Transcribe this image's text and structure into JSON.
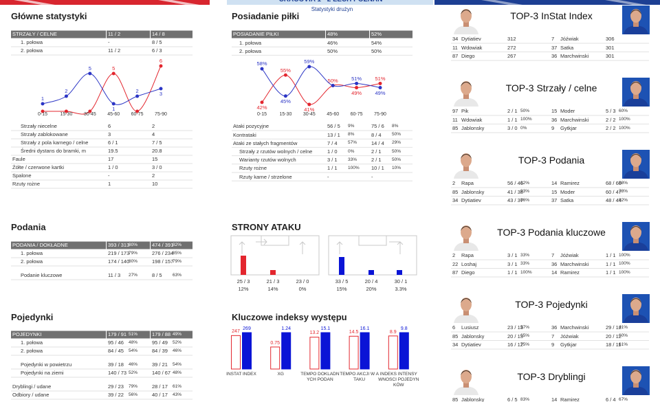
{
  "header": {
    "title": "CRACOVIA 1 - 2 LECH POZNAN",
    "subtitle": "Statystyki drużyn"
  },
  "main_stats": {
    "title": "Główne statystyki",
    "table": {
      "header": [
        "STRZAŁY / CELNE",
        "11 / 2",
        "14 / 8"
      ],
      "groups": [
        [
          {
            "cells": [
              "1. połowa",
              "-",
              "8 / 5"
            ],
            "level": 1
          },
          {
            "cells": [
              "2. połowa",
              "11 / 2",
              "6 / 3"
            ],
            "level": 1
          }
        ]
      ]
    },
    "details": {
      "groups": [
        [
          {
            "cells": [
              "Strzały niecelne",
              "6",
              "2"
            ],
            "level": 1
          },
          {
            "cells": [
              "Strzały zablokowane",
              "3",
              "4"
            ],
            "level": 1
          },
          {
            "cells": [
              "Strzały z pola karnego / celne",
              "6 / 1",
              "7 / 5"
            ],
            "level": 1
          },
          {
            "cells": [
              "Średni dystans do bramki, m",
              "19.5",
              "20.8"
            ],
            "level": 1
          },
          {
            "cells": [
              "Faule",
              "17",
              "15"
            ],
            "level": 0
          },
          {
            "cells": [
              "Żółte / czerwone kartki",
              "1 / 0",
              "3 / 0"
            ],
            "level": 0
          },
          {
            "cells": [
              "Spalone",
              "-",
              "2"
            ],
            "level": 0
          },
          {
            "cells": [
              "Rzuty rożne",
              "1",
              "10"
            ],
            "level": 0
          }
        ]
      ]
    }
  },
  "passes": {
    "title": "Podania",
    "table": {
      "header": [
        "PODANIA / DOKŁADNE",
        {
          "value": "393 / 313",
          "pct": "80%"
        },
        {
          "value": "474 / 391",
          "pct": "82%"
        }
      ],
      "groups": [
        [
          {
            "cells": [
              "1. połowa",
              {
                "value": "219 / 173",
                "pct": "79%"
              },
              {
                "value": "276 / 234",
                "pct": "85%"
              }
            ],
            "level": 1
          },
          {
            "cells": [
              "2. połowa",
              {
                "value": "174 / 140",
                "pct": "80%"
              },
              {
                "value": "198 / 157",
                "pct": "79%"
              }
            ],
            "level": 1
          }
        ],
        [
          {
            "cells": [
              "Podanie kluczowe",
              {
                "value": "11 / 3",
                "pct": "27%"
              },
              {
                "value": "8 / 5",
                "pct": "63%"
              }
            ],
            "level": 1
          }
        ]
      ]
    }
  },
  "duels": {
    "title": "Pojedynki",
    "table": {
      "header": [
        "POJEDYNKI",
        {
          "value": "179 / 91",
          "pct": "51%"
        },
        {
          "value": "179 / 88",
          "pct": "49%"
        }
      ],
      "groups": [
        [
          {
            "cells": [
              "1. połowa",
              {
                "value": "95 / 46",
                "pct": "48%"
              },
              {
                "value": "95 / 49",
                "pct": "52%"
              }
            ],
            "level": 1
          },
          {
            "cells": [
              "2. połowa",
              {
                "value": "84 / 45",
                "pct": "54%"
              },
              {
                "value": "84 / 39",
                "pct": "46%"
              }
            ],
            "level": 1
          }
        ],
        [
          {
            "cells": [
              "Pojedynki w powietrzu",
              {
                "value": "39 / 18",
                "pct": "46%"
              },
              {
                "value": "39 / 21",
                "pct": "54%"
              }
            ],
            "level": 1
          },
          {
            "cells": [
              "Pojedynki na ziemi",
              {
                "value": "140 / 73",
                "pct": "52%"
              },
              {
                "value": "140 / 67",
                "pct": "48%"
              }
            ],
            "level": 1
          }
        ],
        [
          {
            "cells": [
              "Dryblingi / udane",
              {
                "value": "29 / 23",
                "pct": "79%"
              },
              {
                "value": "28 / 17",
                "pct": "61%"
              }
            ],
            "level": 0
          },
          {
            "cells": [
              "Odbiory / udane",
              {
                "value": "39 / 22",
                "pct": "56%"
              },
              {
                "value": "40 / 17",
                "pct": "43%"
              }
            ],
            "level": 0
          }
        ]
      ]
    }
  },
  "possession": {
    "title": "Posiadanie piłki",
    "table": {
      "header": [
        "POSIADANIE PIŁKI",
        "48%",
        "52%"
      ],
      "groups": [
        [
          {
            "cells": [
              "1. połowa",
              "46%",
              "54%"
            ],
            "level": 1
          },
          {
            "cells": [
              "2. połowa",
              "50%",
              "50%"
            ],
            "level": 1
          }
        ]
      ]
    },
    "details": {
      "groups": [
        [
          {
            "cells": [
              "Ataki pozycyjne",
              {
                "value": "56 / 5",
                "pct": "9%"
              },
              {
                "value": "75 / 6",
                "pct": "8%"
              }
            ],
            "level": 0
          },
          {
            "cells": [
              "Kontrataki",
              {
                "value": "13 / 1",
                "pct": "8%"
              },
              {
                "value": "8 / 4",
                "pct": "50%"
              }
            ],
            "level": 0
          },
          {
            "cells": [
              "Ataki ze stałych fragmentów",
              {
                "value": "7 / 4",
                "pct": "57%"
              },
              {
                "value": "14 / 4",
                "pct": "29%"
              }
            ],
            "level": 0
          },
          {
            "cells": [
              "Strzały z rzutów wolnych / celne",
              {
                "value": "1 / 0",
                "pct": "0%"
              },
              {
                "value": "2 / 1",
                "pct": "50%"
              }
            ],
            "level": 1
          },
          {
            "cells": [
              "Warianty rzutów wolnych",
              {
                "value": "3 / 1",
                "pct": "33%"
              },
              {
                "value": "2 / 1",
                "pct": "50%"
              }
            ],
            "level": 1
          },
          {
            "cells": [
              "Rzuty rożne",
              {
                "value": "1 / 1",
                "pct": "100%"
              },
              {
                "value": "10 / 1",
                "pct": "10%"
              }
            ],
            "level": 1
          },
          {
            "cells": [
              "Rzuty karne / strzelone",
              "-",
              "-"
            ],
            "level": 1
          }
        ]
      ]
    }
  },
  "attack_sides": {
    "title": "STRONY ATAKU",
    "teams": [
      [
        {
          "value": "25 / 3",
          "pct": "12%"
        },
        {
          "value": "21 / 3",
          "pct": "14%"
        },
        {
          "value": "23 / 0",
          "pct": "0%"
        }
      ],
      [
        {
          "value": "33 / 5",
          "pct": "15%"
        },
        {
          "value": "20 / 4",
          "pct": "20%"
        },
        {
          "value": "30 / 1",
          "pct": "3.3%"
        }
      ]
    ]
  },
  "indices": {
    "title": "Kluczowe indeksy występu"
  },
  "chart_data": [
    {
      "type": "line",
      "categories": [
        "0-15",
        "15-30",
        "30-45",
        "45-60",
        "60-75",
        "75-90"
      ],
      "series": [
        {
          "color": "#e3262e",
          "values": [
            0,
            0,
            0,
            5,
            0,
            6
          ],
          "value_labels": [
            null,
            null,
            null,
            "5",
            null,
            "6"
          ]
        },
        {
          "color": "#2b35c5",
          "values": [
            1,
            2,
            5,
            1,
            2,
            3
          ]
        }
      ],
      "ylim": [
        0,
        6
      ]
    },
    {
      "type": "line",
      "categories": [
        "0-15",
        "15-30",
        "30-45",
        "45-60",
        "60-75",
        "75-90"
      ],
      "series": [
        {
          "color": "#e3262e",
          "values": [
            42,
            55,
            41,
            50,
            49,
            51
          ],
          "value_labels": [
            "42%",
            "55%",
            "41%",
            "50%",
            "49%",
            "51%"
          ]
        },
        {
          "color": "#2b35c5",
          "values": [
            58,
            45,
            59,
            50,
            51,
            49
          ],
          "value_labels": [
            "58%",
            "45%",
            "59%",
            null,
            "51%",
            "49%"
          ]
        }
      ],
      "ylim": [
        40,
        60
      ]
    },
    {
      "type": "bar",
      "categories": [
        "INSTAT INDEX",
        "XG",
        "TEMPO DOKLADNYCH PODAN",
        "TEMPO AKCJI W ATAKU",
        "INDEKS INTENSYWNOSCI POJEDYNKÓW"
      ],
      "series": [
        {
          "color": "#e3262e",
          "values": [
            247,
            0.75,
            13.2,
            14.5,
            8.9
          ]
        },
        {
          "color": "#0a14d6",
          "values": [
            269,
            1.24,
            15.1,
            16.1,
            9.8
          ]
        }
      ]
    }
  ],
  "top3": [
    {
      "title": "TOP-3 InStat Index",
      "rows": [
        [
          {
            "no": "34",
            "name": "Dytiatiev",
            "value": "312"
          },
          {
            "no": "7",
            "name": "Jóźwiak",
            "value": "306"
          }
        ],
        [
          {
            "no": "11",
            "name": "Wdowiak",
            "value": "272"
          },
          {
            "no": "37",
            "name": "Satka",
            "value": "301"
          }
        ],
        [
          {
            "no": "87",
            "name": "Diego",
            "value": "267"
          },
          {
            "no": "36",
            "name": "Marchwinski",
            "value": "301"
          }
        ]
      ]
    },
    {
      "title": "TOP-3 Strzały / celne",
      "rows": [
        [
          {
            "no": "97",
            "name": "Pik",
            "value": "2 / 1",
            "pct": "50%"
          },
          {
            "no": "15",
            "name": "Moder",
            "value": "5 / 3",
            "pct": "60%"
          }
        ],
        [
          {
            "no": "11",
            "name": "Wdowiak",
            "value": "1 / 1",
            "pct": "100%"
          },
          {
            "no": "36",
            "name": "Marchwinski",
            "value": "2 / 2",
            "pct": "100%"
          }
        ],
        [
          {
            "no": "85",
            "name": "Jablonsky",
            "value": "3 / 0",
            "pct": "0%"
          },
          {
            "no": "9",
            "name": "Gytkjar",
            "value": "2 / 2",
            "pct": "100%"
          }
        ]
      ]
    },
    {
      "title": "TOP-3 Podania",
      "rows": [
        [
          {
            "no": "2",
            "name": "Rapa",
            "value": "56 / 46",
            "pct": "82%"
          },
          {
            "no": "14",
            "name": "Ramirez",
            "value": "68 / 60",
            "pct": "88%"
          }
        ],
        [
          {
            "no": "85",
            "name": "Jablonsky",
            "value": "41 / 38",
            "pct": "93%"
          },
          {
            "no": "15",
            "name": "Moder",
            "value": "60 / 47",
            "pct": "78%"
          }
        ],
        [
          {
            "no": "34",
            "name": "Dytiatiev",
            "value": "43 / 37",
            "pct": "86%"
          },
          {
            "no": "37",
            "name": "Satka",
            "value": "48 / 44",
            "pct": "92%"
          }
        ]
      ]
    },
    {
      "title": "TOP-3 Podania kluczowe",
      "rows": [
        [
          {
            "no": "2",
            "name": "Rapa",
            "value": "3 / 1",
            "pct": "33%"
          },
          {
            "no": "7",
            "name": "Jóźwiak",
            "value": "1 / 1",
            "pct": "100%"
          }
        ],
        [
          {
            "no": "22",
            "name": "Loshaj",
            "value": "3 / 1",
            "pct": "33%"
          },
          {
            "no": "36",
            "name": "Marchwinski",
            "value": "1 / 1",
            "pct": "100%"
          }
        ],
        [
          {
            "no": "87",
            "name": "Diego",
            "value": "1 / 1",
            "pct": "100%"
          },
          {
            "no": "14",
            "name": "Ramirez",
            "value": "1 / 1",
            "pct": "100%"
          }
        ]
      ]
    },
    {
      "title": "TOP-3 Pojedynki",
      "rows": [
        [
          {
            "no": "6",
            "name": "Lusiusz",
            "value": "23 / 13",
            "pct": "57%"
          },
          {
            "no": "36",
            "name": "Marchwinski",
            "value": "29 / 12",
            "pct": "41%"
          }
        ],
        [
          {
            "no": "85",
            "name": "Jablonsky",
            "value": "20 / 13",
            "pct": "65%"
          },
          {
            "no": "7",
            "name": "Jóźwiak",
            "value": "20 / 12",
            "pct": "60%"
          }
        ],
        [
          {
            "no": "34",
            "name": "Dytiatiev",
            "value": "16 / 12",
            "pct": "75%"
          },
          {
            "no": "9",
            "name": "Gytkjar",
            "value": "18 / 11",
            "pct": "61%"
          }
        ]
      ]
    },
    {
      "title": "TOP-3 Dryblingi",
      "rows": [
        [
          {
            "no": "85",
            "name": "Jablonsky",
            "value": "6 / 5",
            "pct": "83%"
          },
          {
            "no": "14",
            "name": "Ramirez",
            "value": "6 / 4",
            "pct": "67%"
          }
        ]
      ]
    }
  ]
}
